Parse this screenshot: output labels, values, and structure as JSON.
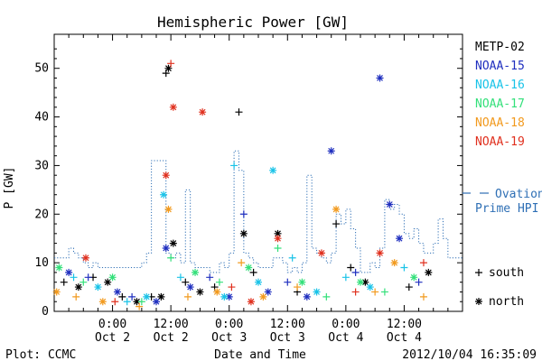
{
  "chart_data": {
    "type": "scatter",
    "title": "Hemispheric Power [GW]",
    "xlabel": "Date and Time",
    "ylabel": "P [GW]",
    "ylim": [
      0,
      57
    ],
    "xlim": [
      "2012-10-01 12:00",
      "2012-10-05 00:00"
    ],
    "yticks": [
      0,
      10,
      20,
      30,
      40,
      50
    ],
    "xticks": [
      {
        "t": "2012-10-02 00:00",
        "l1": "0:00",
        "l2": "Oct 2"
      },
      {
        "t": "2012-10-02 12:00",
        "l1": "12:00",
        "l2": "Oct 2"
      },
      {
        "t": "2012-10-03 00:00",
        "l1": "0:00",
        "l2": "Oct 3"
      },
      {
        "t": "2012-10-03 12:00",
        "l1": "12:00",
        "l2": "Oct 3"
      },
      {
        "t": "2012-10-04 00:00",
        "l1": "0:00",
        "l2": "Oct 4"
      },
      {
        "t": "2012-10-04 12:00",
        "l1": "12:00",
        "l2": "Oct 4"
      }
    ],
    "legend_placement": "right",
    "markers_legend": [
      {
        "symbol": "+",
        "label": "south"
      },
      {
        "symbol": "*",
        "label": "north"
      }
    ],
    "ovation": {
      "label_line1": "Ovation",
      "label_line2": "Prime HPI",
      "color": "#2e6fb5",
      "x": [
        "2012-10-01 12:00",
        "2012-10-01 15:00",
        "2012-10-01 16:00",
        "2012-10-01 17:00",
        "2012-10-01 18:00",
        "2012-10-01 19:00",
        "2012-10-01 20:00",
        "2012-10-01 21:00",
        "2012-10-01 22:00",
        "2012-10-01 23:00",
        "2012-10-02 00:00",
        "2012-10-02 01:00",
        "2012-10-02 02:00",
        "2012-10-02 03:00",
        "2012-10-02 04:00",
        "2012-10-02 05:00",
        "2012-10-02 06:00",
        "2012-10-02 07:00",
        "2012-10-02 08:00",
        "2012-10-02 09:00",
        "2012-10-02 10:00",
        "2012-10-02 11:00",
        "2012-10-02 12:00",
        "2012-10-02 13:00",
        "2012-10-02 14:00",
        "2012-10-02 15:00",
        "2012-10-02 16:00",
        "2012-10-02 17:00",
        "2012-10-02 18:00",
        "2012-10-02 19:00",
        "2012-10-02 20:00",
        "2012-10-02 21:00",
        "2012-10-02 22:00",
        "2012-10-02 23:00",
        "2012-10-03 00:00",
        "2012-10-03 01:00",
        "2012-10-03 02:00",
        "2012-10-03 03:00",
        "2012-10-03 04:00",
        "2012-10-03 05:00",
        "2012-10-03 06:00",
        "2012-10-03 07:00",
        "2012-10-03 08:00",
        "2012-10-03 09:00",
        "2012-10-03 10:00",
        "2012-10-03 11:00",
        "2012-10-03 12:00",
        "2012-10-03 13:00",
        "2012-10-03 14:00",
        "2012-10-03 15:00",
        "2012-10-03 16:00",
        "2012-10-03 17:00",
        "2012-10-03 18:00",
        "2012-10-03 19:00",
        "2012-10-03 20:00",
        "2012-10-03 21:00",
        "2012-10-03 22:00",
        "2012-10-03 23:00",
        "2012-10-04 00:00",
        "2012-10-04 01:00",
        "2012-10-04 02:00",
        "2012-10-04 03:00",
        "2012-10-04 04:00",
        "2012-10-04 05:00",
        "2012-10-04 06:00",
        "2012-10-04 07:00",
        "2012-10-04 08:00",
        "2012-10-04 09:00",
        "2012-10-04 10:00",
        "2012-10-04 11:00",
        "2012-10-04 12:00",
        "2012-10-04 13:00",
        "2012-10-04 14:00",
        "2012-10-04 15:00",
        "2012-10-04 16:00",
        "2012-10-04 17:00",
        "2012-10-04 18:00",
        "2012-10-04 19:00",
        "2012-10-04 20:00",
        "2012-10-04 21:00",
        "2012-10-04 22:00",
        "2012-10-04 23:00",
        "2012-10-05 00:00"
      ],
      "y": [
        11,
        13,
        12,
        11,
        10,
        9,
        10,
        9,
        9,
        9,
        9,
        9,
        9,
        9,
        9,
        9,
        10,
        12,
        31,
        31,
        31,
        12,
        11,
        12,
        10,
        25,
        10,
        9,
        9,
        9,
        8,
        8,
        10,
        9,
        12,
        33,
        29,
        12,
        11,
        10,
        9,
        9,
        9,
        11,
        11,
        10,
        8,
        9,
        8,
        10,
        28,
        13,
        12,
        11,
        10,
        12,
        20,
        18,
        21,
        17,
        13,
        8,
        8,
        10,
        9,
        13,
        23,
        21,
        22,
        20,
        16,
        15,
        17,
        14,
        12,
        12,
        14,
        19,
        15,
        11,
        11,
        11,
        11
      ]
    },
    "series": [
      {
        "name": "METP-02",
        "color": "#000000",
        "points": [
          [
            "2012-10-01 14:00",
            6,
            "+"
          ],
          [
            "2012-10-01 17:00",
            5,
            "*"
          ],
          [
            "2012-10-01 20:00",
            7,
            "+"
          ],
          [
            "2012-10-01 23:00",
            6,
            "*"
          ],
          [
            "2012-10-02 02:00",
            3,
            "+"
          ],
          [
            "2012-10-02 05:00",
            2,
            "*"
          ],
          [
            "2012-10-02 08:00",
            3,
            "+"
          ],
          [
            "2012-10-02 10:00",
            3,
            "*"
          ],
          [
            "2012-10-02 11:00",
            49,
            "+"
          ],
          [
            "2012-10-02 11:30",
            50,
            "*"
          ],
          [
            "2012-10-02 12:30",
            14,
            "*"
          ],
          [
            "2012-10-02 15:00",
            6,
            "+"
          ],
          [
            "2012-10-02 18:00",
            4,
            "*"
          ],
          [
            "2012-10-02 21:00",
            5,
            "+"
          ],
          [
            "2012-10-03 02:00",
            41,
            "+"
          ],
          [
            "2012-10-03 03:00",
            16,
            "*"
          ],
          [
            "2012-10-03 05:00",
            8,
            "+"
          ],
          [
            "2012-10-03 10:00",
            16,
            "*"
          ],
          [
            "2012-10-03 14:00",
            4,
            "+"
          ],
          [
            "2012-10-03 22:00",
            18,
            "+"
          ],
          [
            "2012-10-04 01:00",
            9,
            "+"
          ],
          [
            "2012-10-04 04:00",
            6,
            "*"
          ],
          [
            "2012-10-04 13:00",
            5,
            "+"
          ],
          [
            "2012-10-04 17:00",
            8,
            "*"
          ]
        ]
      },
      {
        "name": "NOAA-15",
        "color": "#1f2fbf",
        "points": [
          [
            "2012-10-01 15:00",
            8,
            "*"
          ],
          [
            "2012-10-01 19:00",
            7,
            "+"
          ],
          [
            "2012-10-02 01:00",
            4,
            "*"
          ],
          [
            "2012-10-02 04:00",
            3,
            "+"
          ],
          [
            "2012-10-02 09:00",
            2,
            "*"
          ],
          [
            "2012-10-02 11:00",
            13,
            "*"
          ],
          [
            "2012-10-02 16:00",
            5,
            "*"
          ],
          [
            "2012-10-02 20:00",
            7,
            "+"
          ],
          [
            "2012-10-03 00:00",
            3,
            "*"
          ],
          [
            "2012-10-03 03:00",
            20,
            "+"
          ],
          [
            "2012-10-03 08:00",
            4,
            "*"
          ],
          [
            "2012-10-03 12:00",
            6,
            "+"
          ],
          [
            "2012-10-03 16:00",
            3,
            "*"
          ],
          [
            "2012-10-03 21:00",
            33,
            "*"
          ],
          [
            "2012-10-04 02:00",
            8,
            "+"
          ],
          [
            "2012-10-04 07:00",
            48,
            "*"
          ],
          [
            "2012-10-04 09:00",
            22,
            "*"
          ],
          [
            "2012-10-04 11:00",
            15,
            "*"
          ],
          [
            "2012-10-04 15:00",
            6,
            "+"
          ]
        ]
      },
      {
        "name": "NOAA-16",
        "color": "#19c3e8",
        "points": [
          [
            "2012-10-01 16:00",
            7,
            "+"
          ],
          [
            "2012-10-01 21:00",
            5,
            "*"
          ],
          [
            "2012-10-02 03:00",
            2,
            "+"
          ],
          [
            "2012-10-02 07:00",
            3,
            "*"
          ],
          [
            "2012-10-02 10:30",
            24,
            "*"
          ],
          [
            "2012-10-02 14:00",
            7,
            "+"
          ],
          [
            "2012-10-02 23:00",
            3,
            "*"
          ],
          [
            "2012-10-03 01:00",
            30,
            "+"
          ],
          [
            "2012-10-03 06:00",
            6,
            "*"
          ],
          [
            "2012-10-03 09:00",
            29,
            "*"
          ],
          [
            "2012-10-03 13:00",
            11,
            "+"
          ],
          [
            "2012-10-03 18:00",
            4,
            "*"
          ],
          [
            "2012-10-04 00:00",
            7,
            "+"
          ],
          [
            "2012-10-04 05:00",
            5,
            "*"
          ],
          [
            "2012-10-04 12:00",
            9,
            "+"
          ]
        ]
      },
      {
        "name": "NOAA-17",
        "color": "#33e07a",
        "points": [
          [
            "2012-10-01 13:00",
            9,
            "*"
          ],
          [
            "2012-10-01 18:00",
            6,
            "+"
          ],
          [
            "2012-10-02 00:00",
            7,
            "*"
          ],
          [
            "2012-10-02 06:00",
            2,
            "+"
          ],
          [
            "2012-10-02 12:00",
            11,
            "+"
          ],
          [
            "2012-10-02 17:00",
            8,
            "*"
          ],
          [
            "2012-10-02 22:00",
            6,
            "+"
          ],
          [
            "2012-10-03 04:00",
            9,
            "*"
          ],
          [
            "2012-10-03 10:00",
            13,
            "+"
          ],
          [
            "2012-10-03 15:00",
            6,
            "*"
          ],
          [
            "2012-10-03 20:00",
            3,
            "+"
          ],
          [
            "2012-10-04 03:00",
            6,
            "*"
          ],
          [
            "2012-10-04 08:00",
            4,
            "+"
          ],
          [
            "2012-10-04 14:00",
            7,
            "*"
          ]
        ]
      },
      {
        "name": "NOAA-18",
        "color": "#f29a1e",
        "points": [
          [
            "2012-10-01 12:30",
            4,
            "*"
          ],
          [
            "2012-10-01 16:30",
            3,
            "+"
          ],
          [
            "2012-10-01 22:00",
            2,
            "*"
          ],
          [
            "2012-10-02 05:30",
            1,
            "+"
          ],
          [
            "2012-10-02 11:30",
            21,
            "*"
          ],
          [
            "2012-10-02 15:30",
            3,
            "+"
          ],
          [
            "2012-10-02 21:30",
            4,
            "*"
          ],
          [
            "2012-10-03 02:30",
            10,
            "+"
          ],
          [
            "2012-10-03 07:00",
            3,
            "*"
          ],
          [
            "2012-10-03 14:00",
            5,
            "+"
          ],
          [
            "2012-10-03 22:00",
            21,
            "*"
          ],
          [
            "2012-10-04 06:00",
            4,
            "+"
          ],
          [
            "2012-10-04 10:00",
            10,
            "*"
          ],
          [
            "2012-10-04 16:00",
            3,
            "+"
          ]
        ]
      },
      {
        "name": "NOAA-19",
        "color": "#e0301e",
        "points": [
          [
            "2012-10-01 18:30",
            11,
            "*"
          ],
          [
            "2012-10-02 00:30",
            2,
            "+"
          ],
          [
            "2012-10-02 11:00",
            28,
            "*"
          ],
          [
            "2012-10-02 12:00",
            51,
            "+"
          ],
          [
            "2012-10-02 12:30",
            42,
            "*"
          ],
          [
            "2012-10-02 18:30",
            41,
            "*"
          ],
          [
            "2012-10-03 00:30",
            5,
            "+"
          ],
          [
            "2012-10-03 04:30",
            2,
            "*"
          ],
          [
            "2012-10-03 10:00",
            15,
            "*"
          ],
          [
            "2012-10-03 19:00",
            12,
            "*"
          ],
          [
            "2012-10-04 02:00",
            4,
            "+"
          ],
          [
            "2012-10-04 07:00",
            12,
            "*"
          ],
          [
            "2012-10-04 16:00",
            10,
            "+"
          ]
        ]
      }
    ]
  },
  "footer": {
    "left": "Plot: CCMC",
    "right": "2012/10/04 16:35:09"
  }
}
